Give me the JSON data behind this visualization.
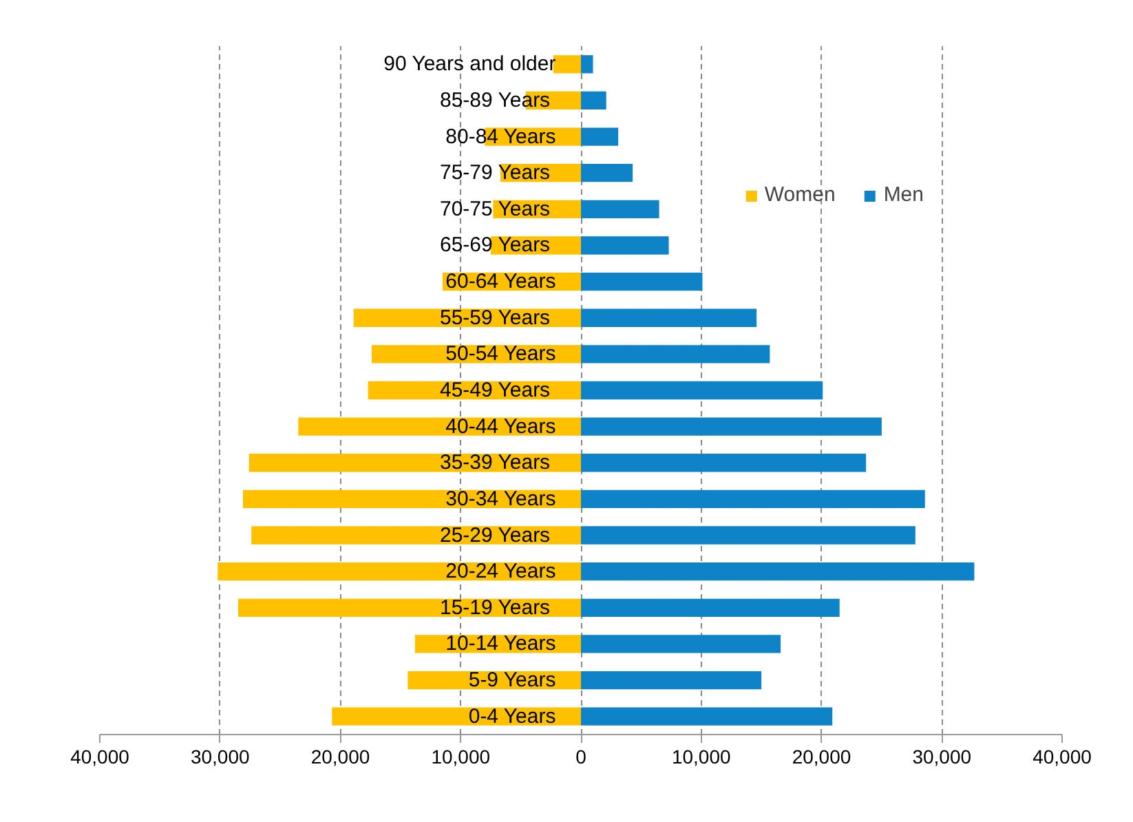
{
  "chart_data": {
    "type": "bar",
    "orientation": "horizontal",
    "categories": [
      "90 Years and older",
      "85-89  Years",
      "80-84 Years",
      "75-79  Years",
      "70-75  Years",
      "65-69  Years",
      "60-64 Years",
      "55-59  Years",
      "50-54 Years",
      "45-49  Years",
      "40-44 Years",
      "35-39  Years",
      "30-34 Years",
      "25-29  Years",
      "20-24 Years",
      "15-19  Years",
      "10-14 Years",
      "5-9 Years",
      "0-4 Years"
    ],
    "series": [
      {
        "name": "Women",
        "color": "#ffc000",
        "values": [
          -2300,
          -4600,
          -8000,
          -6700,
          -7300,
          -7500,
          -11500,
          -18900,
          -17400,
          -17700,
          -23500,
          -27600,
          -28100,
          -27400,
          -30200,
          -28500,
          -13800,
          -14400,
          -20700
        ]
      },
      {
        "name": "Men",
        "color": "#0f83c8",
        "values": [
          1000,
          2100,
          3100,
          4300,
          6500,
          7300,
          10100,
          14600,
          15700,
          20100,
          25000,
          23700,
          28600,
          27800,
          32700,
          21500,
          16600,
          15000,
          20900
        ]
      }
    ],
    "xlim": [
      -40000,
      40000
    ],
    "xticks": [
      {
        "value": -40000,
        "label": "40,000"
      },
      {
        "value": -30000,
        "label": "30,000"
      },
      {
        "value": -20000,
        "label": "20,000"
      },
      {
        "value": -10000,
        "label": "10,000"
      },
      0,
      {
        "value": 10000,
        "label": "10,000"
      },
      {
        "value": 20000,
        "label": "20,000"
      },
      {
        "value": 30000,
        "label": "30,000"
      },
      {
        "value": 40000,
        "label": "40,000"
      }
    ],
    "grid": "x",
    "legend": "top right",
    "stacked": true
  }
}
